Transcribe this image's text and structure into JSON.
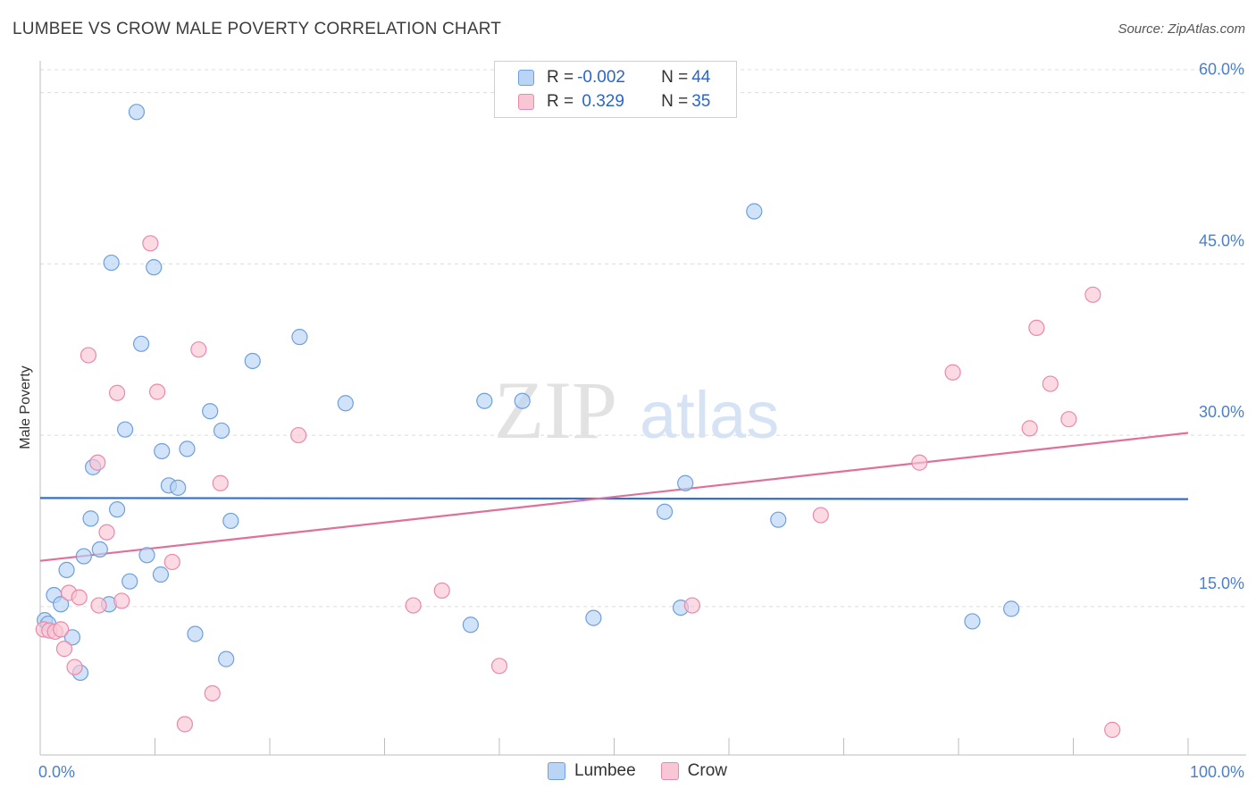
{
  "header": {
    "title": "LUMBEE VS CROW MALE POVERTY CORRELATION CHART",
    "source": "Source: ZipAtlas.com"
  },
  "watermark": {
    "zip": "ZIP",
    "atlas": "atlas"
  },
  "legend": {
    "rows": [
      {
        "r_label": "R = ",
        "r_value": "-0.002",
        "n_label": "N = ",
        "n_value": "44"
      },
      {
        "r_label": "R = ",
        "r_value": " 0.329",
        "n_label": "N = ",
        "n_value": "35"
      }
    ]
  },
  "colors": {
    "lumbee_fill": "#b9d4f5",
    "lumbee_stroke": "#6f9fde",
    "lumbee_line": "#2f6fd1",
    "crow_fill": "#f9c6d6",
    "crow_stroke": "#e98aa9",
    "crow_line": "#e0709a",
    "grid": "#dcdcdc",
    "tick": "#4a7fcf"
  },
  "chart_data": {
    "type": "scatter",
    "title": "LUMBEE VS CROW MALE POVERTY CORRELATION CHART",
    "xlabel": "",
    "ylabel": "Male Poverty",
    "xlim": [
      0,
      100
    ],
    "ylim": [
      2,
      62
    ],
    "x_ticks": [
      "0.0%",
      "100.0%"
    ],
    "y_ticks": [
      {
        "value": 15,
        "label": "15.0%"
      },
      {
        "value": 30,
        "label": "30.0%"
      },
      {
        "value": 45,
        "label": "45.0%"
      },
      {
        "value": 60,
        "label": "60.0%"
      }
    ],
    "grid": true,
    "legend_position": "top-center",
    "series": [
      {
        "name": "Lumbee",
        "r": -0.002,
        "n": 44,
        "trend": [
          [
            0,
            24.5
          ],
          [
            100,
            24.4
          ]
        ],
        "points": [
          [
            0.4,
            13.8
          ],
          [
            0.7,
            13.5
          ],
          [
            1.2,
            16.0
          ],
          [
            1.8,
            15.2
          ],
          [
            2.3,
            18.2
          ],
          [
            2.8,
            12.3
          ],
          [
            3.5,
            9.2
          ],
          [
            3.8,
            19.4
          ],
          [
            4.4,
            22.7
          ],
          [
            4.6,
            27.2
          ],
          [
            5.2,
            20.0
          ],
          [
            6.0,
            15.2
          ],
          [
            6.2,
            45.1
          ],
          [
            6.7,
            23.5
          ],
          [
            7.4,
            30.5
          ],
          [
            7.8,
            17.2
          ],
          [
            8.4,
            58.3
          ],
          [
            8.8,
            38.0
          ],
          [
            9.3,
            19.5
          ],
          [
            9.9,
            44.7
          ],
          [
            10.5,
            17.8
          ],
          [
            10.6,
            28.6
          ],
          [
            11.2,
            25.6
          ],
          [
            12.0,
            25.4
          ],
          [
            12.8,
            28.8
          ],
          [
            13.5,
            12.6
          ],
          [
            14.8,
            32.1
          ],
          [
            15.8,
            30.4
          ],
          [
            16.2,
            10.4
          ],
          [
            16.6,
            22.5
          ],
          [
            18.5,
            36.5
          ],
          [
            22.6,
            38.6
          ],
          [
            26.6,
            32.8
          ],
          [
            37.5,
            13.4
          ],
          [
            38.7,
            33.0
          ],
          [
            42.0,
            33.0
          ],
          [
            48.2,
            14.0
          ],
          [
            54.4,
            23.3
          ],
          [
            55.8,
            14.9
          ],
          [
            56.2,
            25.8
          ],
          [
            62.2,
            49.6
          ],
          [
            64.3,
            22.6
          ],
          [
            81.2,
            13.7
          ],
          [
            84.6,
            14.8
          ]
        ]
      },
      {
        "name": "Crow",
        "r": 0.329,
        "n": 35,
        "trend": [
          [
            0,
            19.0
          ],
          [
            100,
            30.2
          ]
        ],
        "points": [
          [
            0.3,
            13.0
          ],
          [
            0.8,
            12.9
          ],
          [
            1.3,
            12.8
          ],
          [
            1.8,
            13.0
          ],
          [
            2.1,
            11.3
          ],
          [
            2.5,
            16.2
          ],
          [
            3.0,
            9.7
          ],
          [
            3.4,
            15.8
          ],
          [
            4.2,
            37.0
          ],
          [
            5.0,
            27.6
          ],
          [
            5.1,
            15.1
          ],
          [
            5.8,
            21.5
          ],
          [
            6.7,
            33.7
          ],
          [
            7.1,
            15.5
          ],
          [
            9.6,
            46.8
          ],
          [
            10.2,
            33.8
          ],
          [
            11.5,
            18.9
          ],
          [
            12.6,
            4.7
          ],
          [
            13.8,
            37.5
          ],
          [
            15.0,
            7.4
          ],
          [
            15.7,
            25.8
          ],
          [
            22.5,
            30.0
          ],
          [
            32.5,
            15.1
          ],
          [
            35.0,
            16.4
          ],
          [
            40.0,
            9.8
          ],
          [
            56.8,
            15.1
          ],
          [
            68.0,
            23.0
          ],
          [
            76.6,
            27.6
          ],
          [
            79.5,
            35.5
          ],
          [
            86.2,
            30.6
          ],
          [
            86.8,
            39.4
          ],
          [
            88.0,
            34.5
          ],
          [
            89.6,
            31.4
          ],
          [
            91.7,
            42.3
          ],
          [
            93.4,
            4.2
          ]
        ]
      }
    ]
  }
}
